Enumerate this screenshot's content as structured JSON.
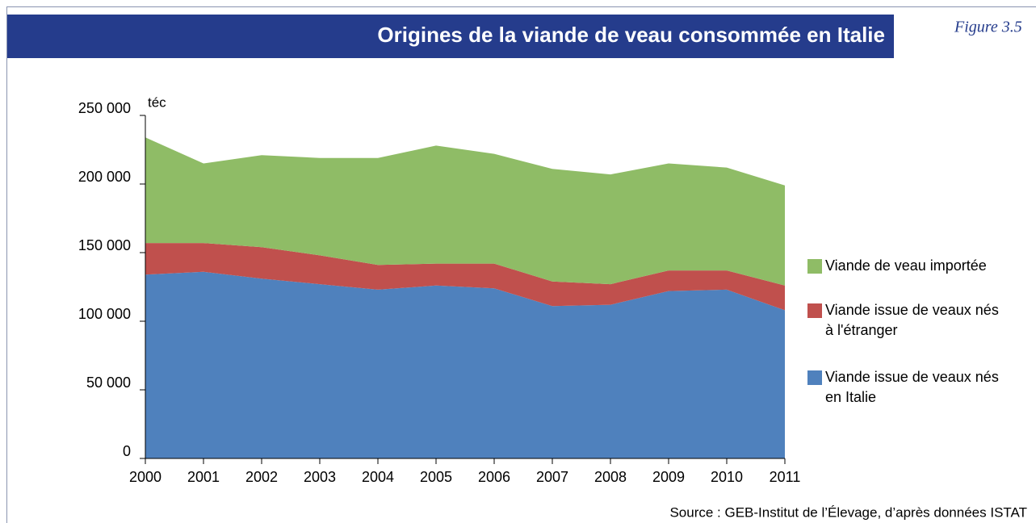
{
  "figure_label": "Figure 3.5",
  "source": "Source : GEB-Institut de l’Élevage, d’après données ISTAT",
  "chart_data": {
    "type": "stacked_area",
    "title": "Origines de la viande de veau consommée en Italie",
    "y_unit": "téc",
    "categories": [
      "2000",
      "2001",
      "2002",
      "2003",
      "2004",
      "2005",
      "2006",
      "2007",
      "2008",
      "2009",
      "2010",
      "2011"
    ],
    "series": [
      {
        "name": "Viande issue de veaux nés en Italie",
        "color": "#4f81bd",
        "values": [
          134000,
          136000,
          131000,
          127000,
          123000,
          126000,
          124000,
          111000,
          112000,
          122000,
          123000,
          108000
        ]
      },
      {
        "name": "Viande issue de veaux nés à l'étranger",
        "color": "#c0504d",
        "values": [
          23000,
          21000,
          23000,
          21000,
          18000,
          16000,
          18000,
          18000,
          15000,
          15000,
          14000,
          18000
        ]
      },
      {
        "name": "Viande de veau importée",
        "color": "#8fbc66",
        "values": [
          77000,
          58000,
          67000,
          71000,
          78000,
          86000,
          80000,
          82000,
          80000,
          78000,
          75000,
          73000
        ]
      }
    ],
    "ylim": [
      0,
      250000
    ],
    "yticks": [
      {
        "value": 0,
        "label": "0"
      },
      {
        "value": 50000,
        "label": "50 000"
      },
      {
        "value": 100000,
        "label": "100 000"
      },
      {
        "value": 150000,
        "label": "150 000"
      },
      {
        "value": 200000,
        "label": "200 000"
      },
      {
        "value": 250000,
        "label": "250 000"
      }
    ]
  }
}
